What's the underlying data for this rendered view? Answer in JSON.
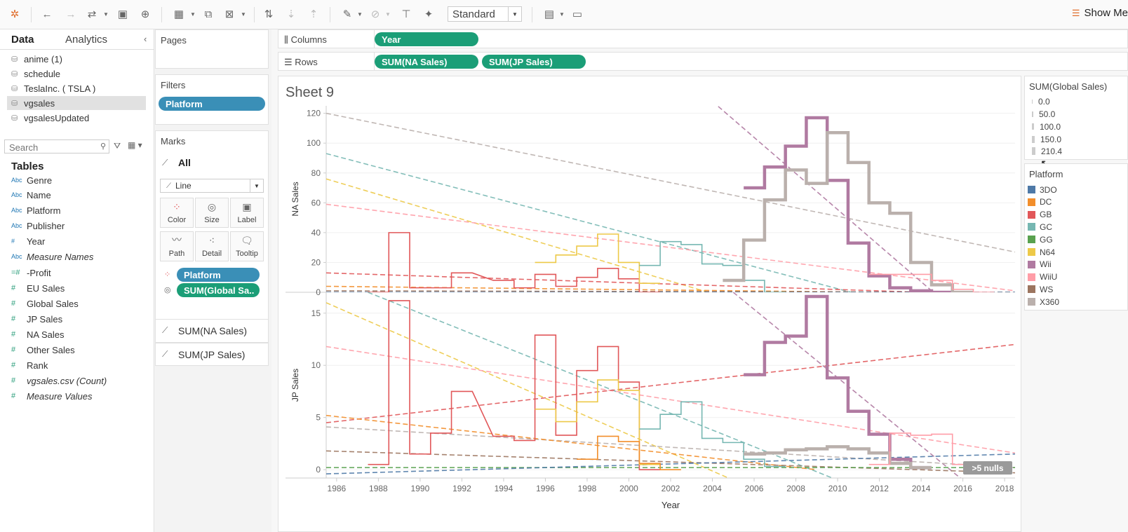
{
  "toolbar": {
    "mark_type_select": "Standard",
    "show_me": "Show Me"
  },
  "datapane": {
    "tabs": [
      "Data",
      "Analytics"
    ],
    "datasources": [
      "anime (1)",
      "schedule",
      "TeslaInc. ( TSLA )",
      "vgsales",
      "vgsalesUpdated"
    ],
    "selected_datasource": "vgsales",
    "search_placeholder": "Search",
    "tables_title": "Tables",
    "dimensions": [
      "Genre",
      "Name",
      "Platform",
      "Publisher",
      "Year",
      "Measure Names"
    ],
    "measures": [
      "-Profit",
      "EU Sales",
      "Global Sales",
      "JP Sales",
      "NA Sales",
      "Other Sales",
      "Rank",
      "vgsales.csv (Count)",
      "Measure Values"
    ],
    "dim_type": "Abc",
    "measure_type": "#"
  },
  "shelves": {
    "pages": "Pages",
    "filters": "Filters",
    "filter_pills": [
      "Platform"
    ],
    "marks": "Marks",
    "marks_all": "All",
    "mark_type": "Line",
    "mark_buttons": [
      "Color",
      "Size",
      "Label",
      "Path",
      "Detail",
      "Tooltip"
    ],
    "mark_pills": [
      "Platform",
      "SUM(Global Sa.."
    ],
    "measure_cards": [
      "SUM(NA Sales)",
      "SUM(JP Sales)"
    ],
    "columns_label": "Columns",
    "rows_label": "Rows",
    "columns_pills": [
      "Year"
    ],
    "rows_pills": [
      "SUM(NA Sales)",
      "SUM(JP Sales)"
    ]
  },
  "sheet": {
    "title": "Sheet 9",
    "nulls_badge": "5 nulls"
  },
  "size_legend": {
    "title": "SUM(Global Sales)",
    "items": [
      "0.0",
      "50.0",
      "100.0",
      "150.0",
      "210.4"
    ]
  },
  "color_legend": {
    "title": "Platform",
    "items": [
      {
        "name": "3DO",
        "color": "#4e79a7"
      },
      {
        "name": "DC",
        "color": "#f28e2b"
      },
      {
        "name": "GB",
        "color": "#e15759"
      },
      {
        "name": "GC",
        "color": "#76b7b2"
      },
      {
        "name": "GG",
        "color": "#59a14f"
      },
      {
        "name": "N64",
        "color": "#edc948"
      },
      {
        "name": "Wii",
        "color": "#b07aa1"
      },
      {
        "name": "WiiU",
        "color": "#ff9da7"
      },
      {
        "name": "WS",
        "color": "#9c755f"
      },
      {
        "name": "X360",
        "color": "#bab0ac"
      }
    ]
  },
  "chart_data": [
    {
      "type": "line",
      "step": true,
      "title": "",
      "xlabel": "",
      "ylabel": "NA Sales",
      "xlim": [
        1985.5,
        2018.5
      ],
      "ylim": [
        0,
        125
      ],
      "yticks": [
        0,
        20,
        40,
        60,
        80,
        100,
        120
      ],
      "grid": true,
      "series": [
        {
          "name": "GB",
          "color": "#e15759",
          "x": [
            1988,
            1989,
            1990,
            1991,
            1992,
            1994,
            1995,
            1996,
            1997,
            1998,
            1999,
            2000,
            2001
          ],
          "y": [
            0,
            40,
            3,
            3,
            13,
            8,
            3,
            12,
            4,
            10,
            16,
            9,
            0
          ]
        },
        {
          "name": "N64",
          "color": "#edc948",
          "x": [
            1996,
            1997,
            1998,
            1999,
            2000,
            2001
          ],
          "y": [
            20,
            25,
            31,
            39,
            20,
            6
          ]
        },
        {
          "name": "GC",
          "color": "#76b7b2",
          "x": [
            2001,
            2002,
            2003,
            2004,
            2005,
            2006,
            2007
          ],
          "y": [
            18,
            34,
            32,
            19,
            18,
            8,
            0
          ]
        },
        {
          "name": "Wii",
          "color": "#b07aa1",
          "x": [
            2006,
            2007,
            2008,
            2009,
            2010,
            2011,
            2012,
            2013,
            2014,
            2015
          ],
          "y": [
            70,
            84,
            98,
            117,
            75,
            33,
            11,
            3,
            1,
            0
          ]
        },
        {
          "name": "X360",
          "color": "#bab0ac",
          "x": [
            2005,
            2006,
            2007,
            2008,
            2009,
            2010,
            2011,
            2012,
            2013,
            2014,
            2015,
            2016
          ],
          "y": [
            8,
            35,
            62,
            82,
            73,
            107,
            87,
            60,
            53,
            20,
            5,
            0
          ]
        },
        {
          "name": "WiiU",
          "color": "#ff9da7",
          "x": [
            2012,
            2013,
            2014,
            2015,
            2016,
            2017
          ],
          "y": [
            12,
            12,
            12,
            8,
            2,
            0
          ]
        }
      ],
      "trend_lines": [
        {
          "name": "X360",
          "color": "#bab0ac",
          "x": [
            1985.5,
            2018.5
          ],
          "y": [
            120,
            27
          ]
        },
        {
          "name": "GC",
          "color": "#76b7b2",
          "x": [
            1985.5,
            2012
          ],
          "y": [
            93,
            -5
          ]
        },
        {
          "name": "N64",
          "color": "#edc948",
          "x": [
            1985.5,
            2005
          ],
          "y": [
            76,
            -5
          ]
        },
        {
          "name": "WiiU",
          "color": "#ff9da7",
          "x": [
            1985.5,
            2018.5
          ],
          "y": [
            59,
            1
          ]
        },
        {
          "name": "Wii",
          "color": "#b07aa1",
          "x": [
            2004,
            2015
          ],
          "y": [
            128,
            -5
          ]
        },
        {
          "name": "GB",
          "color": "#e15759",
          "x": [
            1985.5,
            2018.5
          ],
          "y": [
            13,
            -2
          ]
        },
        {
          "name": "DC",
          "color": "#f28e2b",
          "x": [
            1985.5,
            2018.5
          ],
          "y": [
            4,
            -1
          ]
        },
        {
          "name": "WS",
          "color": "#9c755f",
          "x": [
            1985.5,
            2018.5
          ],
          "y": [
            1,
            0
          ]
        },
        {
          "name": "3DO",
          "color": "#4e79a7",
          "x": [
            1985.5,
            2018.5
          ],
          "y": [
            0,
            0
          ]
        }
      ]
    },
    {
      "type": "line",
      "step": true,
      "title": "",
      "xlabel": "Year",
      "ylabel": "JP Sales",
      "xlim": [
        1985.5,
        2018.5
      ],
      "ylim": [
        -0.8,
        17
      ],
      "yticks": [
        0,
        5,
        10,
        15
      ],
      "xticks": [
        1986,
        1988,
        1990,
        1992,
        1994,
        1996,
        1998,
        2000,
        2002,
        2004,
        2006,
        2008,
        2010,
        2012,
        2014,
        2016,
        2018
      ],
      "grid": true,
      "series": [
        {
          "name": "GB",
          "color": "#e15759",
          "x": [
            1988,
            1989,
            1990,
            1991,
            1992,
            1994,
            1995,
            1996,
            1997,
            1998,
            1999,
            2000,
            2001
          ],
          "y": [
            0.5,
            16.2,
            1.5,
            3.5,
            7.5,
            3.2,
            2.8,
            12.9,
            3.3,
            9.5,
            11.8,
            8.4,
            0
          ]
        },
        {
          "name": "N64",
          "color": "#edc948",
          "x": [
            1996,
            1997,
            1998,
            1999,
            2000,
            2001
          ],
          "y": [
            5.8,
            4.6,
            6.5,
            8.6,
            7.6,
            0.5
          ]
        },
        {
          "name": "DC",
          "color": "#f28e2b",
          "x": [
            1998,
            1999,
            2000,
            2001,
            2002
          ],
          "y": [
            1.0,
            3.2,
            2.7,
            0.6,
            0
          ]
        },
        {
          "name": "GC",
          "color": "#76b7b2",
          "x": [
            2001,
            2002,
            2003,
            2004,
            2005,
            2006,
            2007
          ],
          "y": [
            3.9,
            5.3,
            6.5,
            3.0,
            2.6,
            1.0,
            0.3
          ]
        },
        {
          "name": "Wii",
          "color": "#b07aa1",
          "x": [
            2006,
            2007,
            2008,
            2009,
            2010,
            2011,
            2012,
            2013,
            2014
          ],
          "y": [
            9.1,
            12.2,
            12.8,
            16.6,
            8.8,
            5.6,
            3.4,
            1.0,
            0.2
          ]
        },
        {
          "name": "X360",
          "color": "#bab0ac",
          "x": [
            2006,
            2007,
            2008,
            2009,
            2010,
            2011,
            2012,
            2013,
            2014
          ],
          "y": [
            1.5,
            1.6,
            1.9,
            2.0,
            2.2,
            2.0,
            1.6,
            0.6,
            0.2
          ]
        },
        {
          "name": "WiiU",
          "color": "#ff9da7",
          "x": [
            2012,
            2013,
            2014,
            2015,
            2016,
            2017
          ],
          "y": [
            0.5,
            3.5,
            3.3,
            3.4,
            0.5,
            0
          ]
        }
      ],
      "trend_lines": [
        {
          "name": "N64",
          "color": "#edc948",
          "x": [
            1985.5,
            2005
          ],
          "y": [
            16,
            -1
          ]
        },
        {
          "name": "GC",
          "color": "#76b7b2",
          "x": [
            1987.5,
            2010
          ],
          "y": [
            17,
            -1
          ]
        },
        {
          "name": "WiiU",
          "color": "#ff9da7",
          "x": [
            1985.5,
            2018.5
          ],
          "y": [
            11.8,
            1.6
          ]
        },
        {
          "name": "GB",
          "color": "#e15759",
          "x": [
            1985.5,
            2018.5
          ],
          "y": [
            4.5,
            12
          ]
        },
        {
          "name": "Wii",
          "color": "#b07aa1",
          "x": [
            2005,
            2016
          ],
          "y": [
            17,
            -1
          ]
        },
        {
          "name": "X360",
          "color": "#bab0ac",
          "x": [
            1985.5,
            2018.5
          ],
          "y": [
            4.1,
            0.2
          ]
        },
        {
          "name": "DC",
          "color": "#f28e2b",
          "x": [
            1985.5,
            2009
          ],
          "y": [
            5.2,
            0
          ]
        },
        {
          "name": "WS",
          "color": "#9c755f",
          "x": [
            1985.5,
            2018.5
          ],
          "y": [
            1.8,
            -0.3
          ]
        },
        {
          "name": "GG",
          "color": "#59a14f",
          "x": [
            1985.5,
            2018.5
          ],
          "y": [
            0.2,
            0.2
          ]
        },
        {
          "name": "3DO",
          "color": "#4e79a7",
          "x": [
            1985.5,
            2018.5
          ],
          "y": [
            -0.4,
            1.5
          ]
        }
      ]
    }
  ]
}
